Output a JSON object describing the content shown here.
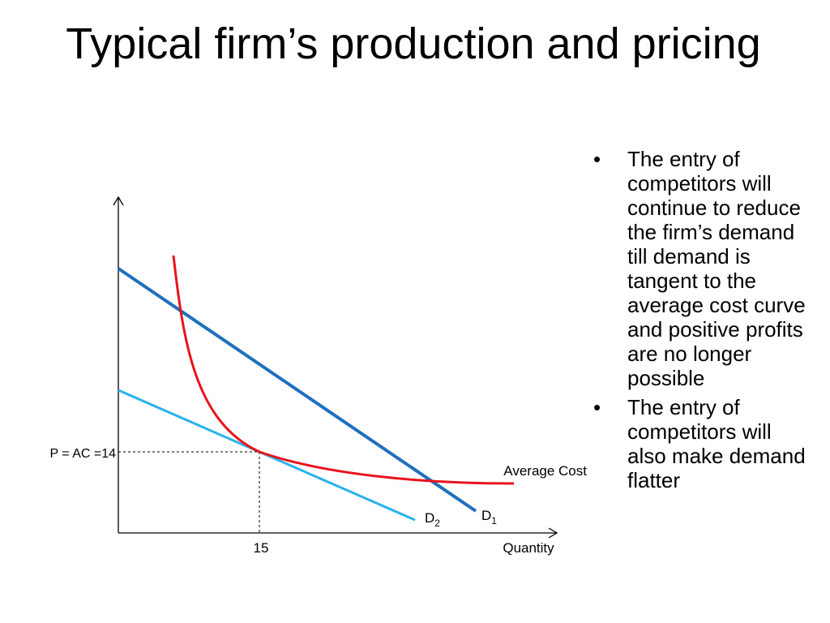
{
  "slide": {
    "title": "Typical firm’s production and pricing"
  },
  "diagram": {
    "price_label": "P = AC =14",
    "quantity_tick": "15",
    "x_axis_label": "Quantity",
    "average_cost_label": "Average Cost",
    "d1_base": "D",
    "d1_sub": "1",
    "d2_base": "D",
    "d2_sub": "2",
    "colors": {
      "average_cost": "#e8131b",
      "d1": "#1f6fbf",
      "d2": "#29b2ea",
      "axis": "#000000"
    }
  },
  "bullets": {
    "marker": "•",
    "items": [
      "The entry of competitors will continue to reduce the firm’s demand till demand is tangent to the average cost curve and positive profits are no longer possible",
      "The entry of competitors will also make demand flatter"
    ]
  }
}
